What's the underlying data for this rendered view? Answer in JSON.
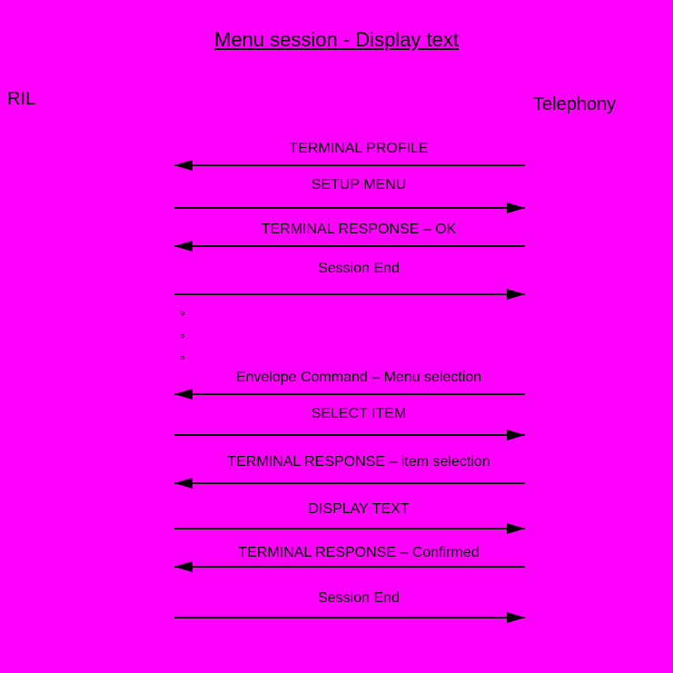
{
  "diagram": {
    "title": "Menu session - Display text",
    "actors": {
      "left": "RIL",
      "right": "Telephony"
    },
    "messages": [
      {
        "label": "TERMINAL PROFILE",
        "direction": "left",
        "from": "Telephony",
        "to": "RIL"
      },
      {
        "label": "SETUP MENU",
        "direction": "right",
        "from": "RIL",
        "to": "Telephony"
      },
      {
        "label": "TERMINAL RESPONSE – OK",
        "direction": "left",
        "from": "Telephony",
        "to": "RIL"
      },
      {
        "label": "Session End",
        "direction": "right",
        "from": "RIL",
        "to": "Telephony"
      },
      {
        "label": "Envelope Command – Menu selection",
        "direction": "left",
        "from": "Telephony",
        "to": "RIL"
      },
      {
        "label": "SELECT ITEM",
        "direction": "right",
        "from": "RIL",
        "to": "Telephony"
      },
      {
        "label": "TERMINAL RESPONSE – item selection",
        "direction": "left",
        "from": "Telephony",
        "to": "RIL"
      },
      {
        "label": "DISPLAY TEXT",
        "direction": "right",
        "from": "RIL",
        "to": "Telephony"
      },
      {
        "label": "TERMINAL RESPONSE – Confirmed",
        "direction": "left",
        "from": "Telephony",
        "to": "RIL"
      },
      {
        "label": "Session End",
        "direction": "right",
        "from": "RIL",
        "to": "Telephony"
      }
    ],
    "ellipsis": [
      "°",
      "°",
      "°"
    ],
    "colors": {
      "background": "#FF00FF",
      "line": "#000000",
      "text": "#000000"
    }
  }
}
